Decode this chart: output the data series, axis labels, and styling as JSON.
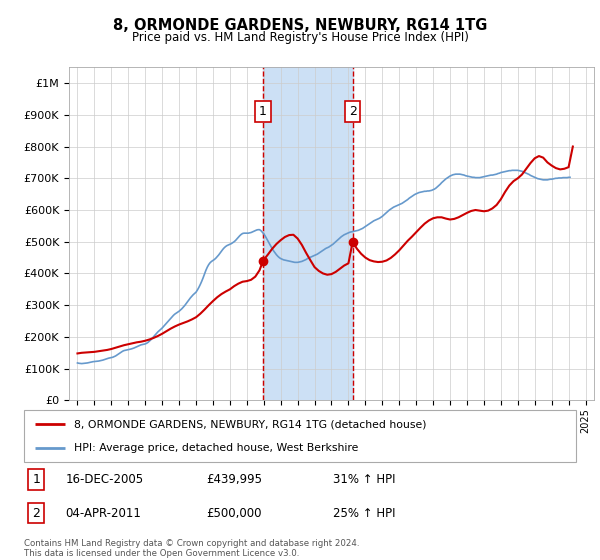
{
  "title": "8, ORMONDE GARDENS, NEWBURY, RG14 1TG",
  "subtitle": "Price paid vs. HM Land Registry's House Price Index (HPI)",
  "footer": "Contains HM Land Registry data © Crown copyright and database right 2024.\nThis data is licensed under the Open Government Licence v3.0.",
  "legend_line1": "8, ORMONDE GARDENS, NEWBURY, RG14 1TG (detached house)",
  "legend_line2": "HPI: Average price, detached house, West Berkshire",
  "transaction1_label": "1",
  "transaction1_date": "16-DEC-2005",
  "transaction1_price": "£439,995",
  "transaction1_hpi": "31% ↑ HPI",
  "transaction2_label": "2",
  "transaction2_date": "04-APR-2011",
  "transaction2_price": "£500,000",
  "transaction2_hpi": "25% ↑ HPI",
  "sale1_year": 2005.96,
  "sale1_price": 439995,
  "sale2_year": 2011.25,
  "sale2_price": 500000,
  "red_line_color": "#cc0000",
  "blue_line_color": "#6699cc",
  "shade_color": "#cce0f5",
  "marker_color": "#cc0000",
  "grid_color": "#cccccc",
  "ylim_min": 0,
  "ylim_max": 1050000,
  "xlim_min": 1994.5,
  "xlim_max": 2025.5,
  "hpi_values": [
    118000,
    117000,
    116500,
    116000,
    116500,
    117000,
    117500,
    118000,
    119000,
    120000,
    121000,
    122000,
    122500,
    123000,
    123500,
    124000,
    125000,
    126000,
    127000,
    128500,
    130000,
    131500,
    133000,
    134000,
    135000,
    136000,
    138000,
    140000,
    143000,
    146000,
    149000,
    152000,
    155000,
    157000,
    158000,
    159000,
    160000,
    161000,
    162000,
    163500,
    165000,
    167000,
    169000,
    171000,
    173000,
    175000,
    176000,
    177000,
    178000,
    180000,
    183000,
    187000,
    191000,
    196000,
    201000,
    206000,
    211000,
    216000,
    220000,
    224000,
    228000,
    233000,
    238000,
    243000,
    248000,
    253000,
    258000,
    263000,
    268000,
    272000,
    275000,
    278000,
    281000,
    285000,
    289000,
    294000,
    299000,
    305000,
    311000,
    317000,
    323000,
    328000,
    333000,
    337000,
    341000,
    348000,
    356000,
    365000,
    375000,
    386000,
    398000,
    410000,
    420000,
    428000,
    434000,
    438000,
    441000,
    444000,
    448000,
    453000,
    458000,
    464000,
    470000,
    476000,
    481000,
    485000,
    488000,
    490000,
    492000,
    494000,
    497000,
    500000,
    504000,
    509000,
    514000,
    519000,
    523000,
    526000,
    527000,
    527000,
    527000,
    527000,
    528000,
    529000,
    531000,
    533000,
    535000,
    537000,
    538000,
    538000,
    535000,
    530000,
    525000,
    518000,
    510000,
    502000,
    494000,
    486000,
    478000,
    471000,
    465000,
    459000,
    454000,
    450000,
    447000,
    445000,
    443000,
    442000,
    441000,
    440000,
    439000,
    438000,
    437000,
    436000,
    435000,
    435000,
    435000,
    436000,
    437000,
    438000,
    440000,
    442000,
    444000,
    447000,
    449000,
    451000,
    453000,
    455000,
    457000,
    459000,
    461000,
    464000,
    467000,
    470000,
    473000,
    476000,
    479000,
    481000,
    483000,
    486000,
    489000,
    492000,
    496000,
    500000,
    504000,
    508000,
    512000,
    516000,
    519000,
    522000,
    524000,
    526000,
    528000,
    530000,
    531000,
    532000,
    533000,
    534000,
    535000,
    536000,
    538000,
    540000,
    542000,
    545000,
    548000,
    551000,
    554000,
    557000,
    560000,
    563000,
    566000,
    568000,
    570000,
    572000,
    574000,
    577000,
    580000,
    584000,
    588000,
    592000,
    596000,
    600000,
    603000,
    606000,
    609000,
    611000,
    613000,
    615000,
    617000,
    619000,
    621000,
    624000,
    627000,
    630000,
    633000,
    637000,
    640000,
    643000,
    646000,
    649000,
    651000,
    653000,
    655000,
    656000,
    657000,
    658000,
    659000,
    659000,
    660000,
    660000,
    661000,
    662000,
    664000,
    666000,
    669000,
    673000,
    677000,
    681000,
    686000,
    690000,
    694000,
    698000,
    701000,
    704000,
    707000,
    709000,
    711000,
    712000,
    713000,
    713000,
    713000,
    713000,
    712000,
    711000,
    710000,
    708000,
    707000,
    706000,
    705000,
    704000,
    703000,
    703000,
    702000,
    702000,
    702000,
    702000,
    703000,
    704000,
    705000,
    706000,
    707000,
    708000,
    709000,
    710000,
    710000,
    711000,
    712000,
    713000,
    715000,
    716000,
    718000,
    719000,
    720000,
    721000,
    722000,
    723000,
    724000,
    724000,
    725000,
    725000,
    725000,
    725000,
    725000,
    724000,
    723000,
    722000,
    720000,
    718000,
    716000,
    714000,
    712000,
    709000,
    707000,
    705000,
    703000,
    701000,
    699000,
    698000,
    697000,
    696000,
    695000,
    695000,
    695000,
    695000,
    696000,
    697000,
    697000,
    698000,
    699000,
    700000,
    700000,
    701000,
    701000,
    701000,
    702000,
    702000,
    702000,
    702000,
    703000,
    703000
  ],
  "red_line_values": [
    148000,
    150000,
    151000,
    152000,
    153000,
    155000,
    157000,
    159000,
    162000,
    166000,
    170000,
    174000,
    177000,
    180000,
    183000,
    185000,
    188000,
    192000,
    197000,
    203000,
    210000,
    218000,
    226000,
    233000,
    239000,
    244000,
    249000,
    255000,
    262000,
    273000,
    286000,
    300000,
    313000,
    325000,
    335000,
    343000,
    350000,
    360000,
    368000,
    374000,
    376000,
    380000,
    390000,
    410000,
    439995,
    443000,
    460000,
    478000,
    493000,
    505000,
    515000,
    521000,
    522000,
    510000,
    490000,
    465000,
    442000,
    420000,
    408000,
    400000,
    396000,
    398000,
    405000,
    415000,
    425000,
    432000,
    500000,
    478000,
    462000,
    450000,
    442000,
    438000,
    436000,
    437000,
    441000,
    449000,
    460000,
    473000,
    488000,
    503000,
    516000,
    530000,
    544000,
    557000,
    567000,
    574000,
    577000,
    577000,
    573000,
    570000,
    572000,
    577000,
    584000,
    591000,
    597000,
    600000,
    598000,
    596000,
    598000,
    605000,
    616000,
    634000,
    657000,
    677000,
    691000,
    700000,
    712000,
    730000,
    748000,
    763000,
    770000,
    765000,
    750000,
    740000,
    732000,
    728000,
    730000,
    735000,
    800000
  ],
  "red_line_years": [
    1995.0,
    1995.25,
    1995.5,
    1995.75,
    1996.0,
    1996.25,
    1996.5,
    1996.75,
    1997.0,
    1997.25,
    1997.5,
    1997.75,
    1998.0,
    1998.25,
    1998.5,
    1998.75,
    1999.0,
    1999.25,
    1999.5,
    1999.75,
    2000.0,
    2000.25,
    2000.5,
    2000.75,
    2001.0,
    2001.25,
    2001.5,
    2001.75,
    2002.0,
    2002.25,
    2002.5,
    2002.75,
    2003.0,
    2003.25,
    2003.5,
    2003.75,
    2004.0,
    2004.25,
    2004.5,
    2004.75,
    2005.0,
    2005.25,
    2005.5,
    2005.75,
    2005.96,
    2006.0,
    2006.25,
    2006.5,
    2006.75,
    2007.0,
    2007.25,
    2007.5,
    2007.75,
    2008.0,
    2008.25,
    2008.5,
    2008.75,
    2009.0,
    2009.25,
    2009.5,
    2009.75,
    2010.0,
    2010.25,
    2010.5,
    2010.75,
    2011.0,
    2011.25,
    2011.5,
    2011.75,
    2012.0,
    2012.25,
    2012.5,
    2012.75,
    2013.0,
    2013.25,
    2013.5,
    2013.75,
    2014.0,
    2014.25,
    2014.5,
    2014.75,
    2015.0,
    2015.25,
    2015.5,
    2015.75,
    2016.0,
    2016.25,
    2016.5,
    2016.75,
    2017.0,
    2017.25,
    2017.5,
    2017.75,
    2018.0,
    2018.25,
    2018.5,
    2018.75,
    2019.0,
    2019.25,
    2019.5,
    2019.75,
    2020.0,
    2020.25,
    2020.5,
    2020.75,
    2021.0,
    2021.25,
    2021.5,
    2021.75,
    2022.0,
    2022.25,
    2022.5,
    2022.75,
    2023.0,
    2023.25,
    2023.5,
    2023.75,
    2024.0,
    2024.25
  ]
}
